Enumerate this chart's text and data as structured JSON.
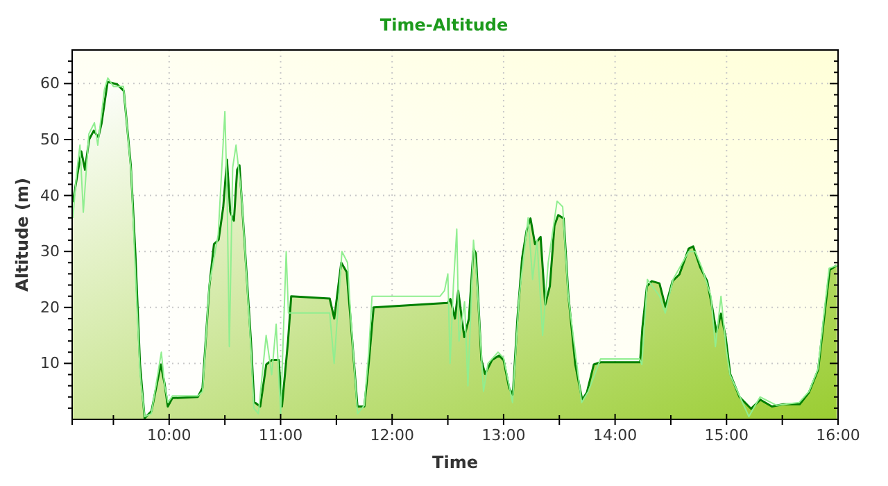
{
  "chart_data": {
    "type": "line",
    "title": "Time-Altitude",
    "xlabel": "Time",
    "ylabel": "Altitude (m)",
    "xlim": [
      9.13,
      16.0
    ],
    "ylim": [
      0,
      66
    ],
    "xticks": [
      {
        "value": 9.5,
        "label": null
      },
      {
        "value": 10,
        "label": "10:00"
      },
      {
        "value": 10.5,
        "label": null
      },
      {
        "value": 11,
        "label": "11:00"
      },
      {
        "value": 11.5,
        "label": null
      },
      {
        "value": 12,
        "label": "12:00"
      },
      {
        "value": 12.5,
        "label": null
      },
      {
        "value": 13,
        "label": "13:00"
      },
      {
        "value": 13.5,
        "label": null
      },
      {
        "value": 14,
        "label": "14:00"
      },
      {
        "value": 14.5,
        "label": null
      },
      {
        "value": 15,
        "label": "15:00"
      },
      {
        "value": 15.5,
        "label": null
      },
      {
        "value": 16,
        "label": "16:00"
      }
    ],
    "yticks": [
      {
        "value": 2,
        "label": null
      },
      {
        "value": 4,
        "label": null
      },
      {
        "value": 6,
        "label": null
      },
      {
        "value": 8,
        "label": null
      },
      10,
      {
        "value": 12,
        "label": null
      },
      {
        "value": 14,
        "label": null
      },
      {
        "value": 16,
        "label": null
      },
      {
        "value": 18,
        "label": null
      },
      20,
      {
        "value": 22,
        "label": null
      },
      {
        "value": 24,
        "label": null
      },
      {
        "value": 26,
        "label": null
      },
      {
        "value": 28,
        "label": null
      },
      30,
      {
        "value": 32,
        "label": null
      },
      {
        "value": 34,
        "label": null
      },
      {
        "value": 36,
        "label": null
      },
      {
        "value": 38,
        "label": null
      },
      40,
      {
        "value": 42,
        "label": null
      },
      {
        "value": 44,
        "label": null
      },
      {
        "value": 46,
        "label": null
      },
      {
        "value": 48,
        "label": null
      },
      50,
      {
        "value": 52,
        "label": null
      },
      {
        "value": 54,
        "label": null
      },
      {
        "value": 56,
        "label": null
      },
      {
        "value": 58,
        "label": null
      },
      60,
      {
        "value": 62,
        "label": null
      },
      {
        "value": 64,
        "label": null
      }
    ],
    "grid": true,
    "series": [
      {
        "color": "#90ee90",
        "x": [
          9.137,
          9.17,
          9.2,
          9.23,
          9.28,
          9.33,
          9.36,
          9.42,
          9.45,
          9.5,
          9.59,
          9.66,
          9.7,
          9.74,
          9.78,
          9.84,
          9.93,
          9.96,
          9.99,
          10.03,
          10.26,
          10.3,
          10.36,
          10.44,
          10.5,
          10.52,
          10.54,
          10.57,
          10.6,
          10.65,
          10.73,
          10.76,
          10.8,
          10.87,
          10.92,
          10.96,
          11.0,
          11.05,
          11.07,
          11.44,
          11.48,
          11.55,
          11.6,
          11.63,
          11.69,
          11.75,
          11.79,
          11.82,
          12.43,
          12.47,
          12.5,
          12.52,
          12.55,
          12.58,
          12.6,
          12.65,
          12.68,
          12.73,
          12.76,
          12.82,
          12.86,
          12.95,
          13.0,
          13.08,
          13.14,
          13.22,
          13.26,
          13.3,
          13.35,
          13.4,
          13.48,
          13.53,
          13.58,
          13.7,
          13.76,
          13.87,
          14.22,
          14.24,
          14.29,
          14.4,
          14.45,
          14.52,
          14.66,
          14.72,
          14.78,
          14.86,
          14.9,
          14.95,
          15.0,
          15.03,
          15.2,
          15.3,
          15.45,
          15.65,
          15.74,
          15.82,
          15.88,
          15.92,
          15.99
        ],
        "values": [
          36,
          44,
          49,
          37,
          51,
          53,
          49,
          59,
          61,
          59.5,
          59.5,
          44,
          25,
          8,
          0.5,
          1,
          12,
          6,
          3,
          4.2,
          4.2,
          5,
          24,
          33,
          55,
          40,
          13,
          45,
          49,
          40,
          14,
          2,
          1,
          15,
          8,
          17,
          1,
          30,
          19,
          19,
          10,
          30,
          28,
          18,
          1,
          2.5,
          12,
          22,
          22,
          23,
          26,
          10,
          24,
          34,
          14,
          21,
          6,
          32,
          25,
          5,
          10,
          12,
          11,
          3,
          22,
          36,
          25,
          32,
          15,
          28,
          39,
          38,
          22,
          3,
          5,
          10.8,
          10.8,
          9.8,
          25,
          22,
          19,
          25,
          30,
          30,
          27,
          22,
          13,
          22,
          12,
          8,
          0.5,
          4,
          2.5,
          3,
          5,
          9,
          20,
          27,
          27.5
        ]
      },
      {
        "type": "area",
        "color": "#008000",
        "x": [
          9.137,
          9.17,
          9.212,
          9.245,
          9.282,
          9.324,
          9.365,
          9.394,
          9.448,
          9.531,
          9.593,
          9.656,
          9.697,
          9.739,
          9.78,
          9.842,
          9.925,
          9.959,
          9.988,
          10.029,
          10.257,
          10.299,
          10.361,
          10.402,
          10.444,
          10.485,
          10.519,
          10.548,
          10.581,
          10.61,
          10.631,
          10.672,
          10.734,
          10.763,
          10.817,
          10.871,
          10.921,
          10.983,
          11.012,
          11.066,
          11.095,
          11.44,
          11.481,
          11.544,
          11.593,
          11.627,
          11.689,
          11.751,
          11.793,
          11.834,
          12.498,
          12.523,
          12.564,
          12.593,
          12.647,
          12.689,
          12.73,
          12.751,
          12.801,
          12.834,
          12.896,
          12.959,
          13.0,
          13.05,
          13.083,
          13.124,
          13.166,
          13.207,
          13.241,
          13.282,
          13.332,
          13.373,
          13.415,
          13.456,
          13.49,
          13.539,
          13.581,
          13.643,
          13.705,
          13.747,
          13.809,
          13.871,
          14.224,
          14.245,
          14.286,
          14.328,
          14.398,
          14.452,
          14.515,
          14.577,
          14.66,
          14.701,
          14.763,
          14.826,
          14.867,
          14.909,
          14.95,
          14.992,
          15.033,
          15.116,
          15.22,
          15.303,
          15.407,
          15.51,
          15.656,
          15.739,
          15.822,
          15.884,
          15.925,
          15.988
        ],
        "values": [
          38.8,
          42.9,
          47.9,
          44.6,
          50,
          51.6,
          50.4,
          52.9,
          60.3,
          59.9,
          58.7,
          45.4,
          29.7,
          9.8,
          0.2,
          1.5,
          9.8,
          6.4,
          2.3,
          3.8,
          4,
          5.6,
          23.8,
          31.3,
          32.1,
          37.9,
          46.4,
          37.1,
          35.5,
          44.6,
          45.4,
          33,
          13.9,
          3.1,
          2.3,
          9.8,
          10.6,
          10.6,
          2.3,
          13.9,
          22,
          21.6,
          18,
          28,
          26.3,
          18,
          2.3,
          2.3,
          10.6,
          20,
          20.8,
          21.5,
          18,
          23,
          14.7,
          18,
          30.5,
          29.7,
          10.6,
          8.1,
          10.6,
          11.4,
          10.6,
          5.6,
          4.4,
          18,
          28.8,
          33.8,
          35.9,
          31.3,
          32.6,
          20.5,
          23.8,
          34.6,
          36.5,
          35.9,
          22.2,
          9.8,
          3.5,
          4.8,
          9.8,
          10.2,
          10.2,
          16.4,
          23.8,
          24.7,
          24.3,
          20.1,
          24.7,
          25.9,
          30.5,
          30.9,
          27.2,
          24.7,
          20.5,
          15.6,
          18.9,
          14.7,
          8.1,
          4,
          1.9,
          3.5,
          2.3,
          2.7,
          2.7,
          4.8,
          8.9,
          19.7,
          26.7,
          27.5
        ]
      }
    ]
  }
}
